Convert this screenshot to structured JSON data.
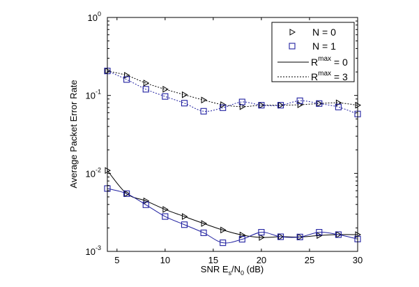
{
  "chart_data": {
    "type": "line",
    "title": "",
    "xlabel": "SNR E_s/N_0 (dB)",
    "xlabel_parts": {
      "main": "SNR E",
      "sub1": "s",
      "mid": "/N",
      "sub2": "0",
      "tail": " (dB)"
    },
    "ylabel": "Average Packet Error Rate",
    "xlim": [
      4,
      30
    ],
    "ylim": [
      0.001,
      1
    ],
    "yscale": "log",
    "grid": false,
    "legend_position": "top-right",
    "x_ticks": [
      5,
      10,
      15,
      20,
      25,
      30
    ],
    "x_tick_labels": [
      "5",
      "10",
      "15",
      "20",
      "25",
      "30"
    ],
    "y_ticks": [
      {
        "value": 1,
        "base": "10",
        "exp": "0"
      },
      {
        "value": 0.1,
        "base": "10",
        "exp": "-1"
      },
      {
        "value": 0.01,
        "base": "10",
        "exp": "-2"
      },
      {
        "value": 0.001,
        "base": "10",
        "exp": "-3"
      }
    ],
    "legend": [
      {
        "type": "marker",
        "marker": "triangle-right",
        "color": "#000000",
        "label": "N = 0"
      },
      {
        "type": "marker",
        "marker": "square",
        "color": "#1f1fa0",
        "label": "N = 1"
      },
      {
        "type": "line",
        "style": "solid",
        "color": "#000000",
        "label_main": "R",
        "label_sup": "max",
        "label_tail": " = 0"
      },
      {
        "type": "line",
        "style": "dotted",
        "color": "#000000",
        "label_main": "R",
        "label_sup": "max",
        "label_tail": " = 3"
      }
    ],
    "x": [
      4,
      6,
      8,
      10,
      12,
      14,
      16,
      18,
      20,
      22,
      24,
      26,
      28,
      30
    ],
    "series": [
      {
        "name": "N = 0, Rmax = 3",
        "marker": "triangle-right",
        "color": "#000000",
        "line": "dotted",
        "values": [
          0.206,
          0.181,
          0.144,
          0.12,
          0.102,
          0.0873,
          0.076,
          0.0718,
          0.0749,
          0.0749,
          0.076,
          0.0787,
          0.0803,
          0.0749
        ]
      },
      {
        "name": "N = 1, Rmax = 3",
        "marker": "square",
        "color": "#1f1fa0",
        "line": "dotted",
        "values": [
          0.206,
          0.16,
          0.12,
          0.097,
          0.0796,
          0.0627,
          0.0695,
          0.0825,
          0.0749,
          0.0749,
          0.0855,
          0.0787,
          0.071,
          0.0578
        ]
      },
      {
        "name": "N = 0, Rmax = 0",
        "marker": "triangle-right",
        "color": "#000000",
        "line": "solid",
        "values": [
          0.0109,
          0.0055,
          0.00444,
          0.00345,
          0.0028,
          0.00228,
          0.00188,
          0.00162,
          0.00151,
          0.00154,
          0.00153,
          0.0016,
          0.00164,
          0.00164
        ]
      },
      {
        "name": "N = 1, Rmax = 0",
        "marker": "square",
        "color": "#1f1fa0",
        "line": "solid",
        "values": [
          0.0064,
          0.0055,
          0.00396,
          0.0028,
          0.0022,
          0.00173,
          0.00129,
          0.00143,
          0.00176,
          0.00154,
          0.00153,
          0.00176,
          0.00164,
          0.00144
        ]
      }
    ]
  }
}
